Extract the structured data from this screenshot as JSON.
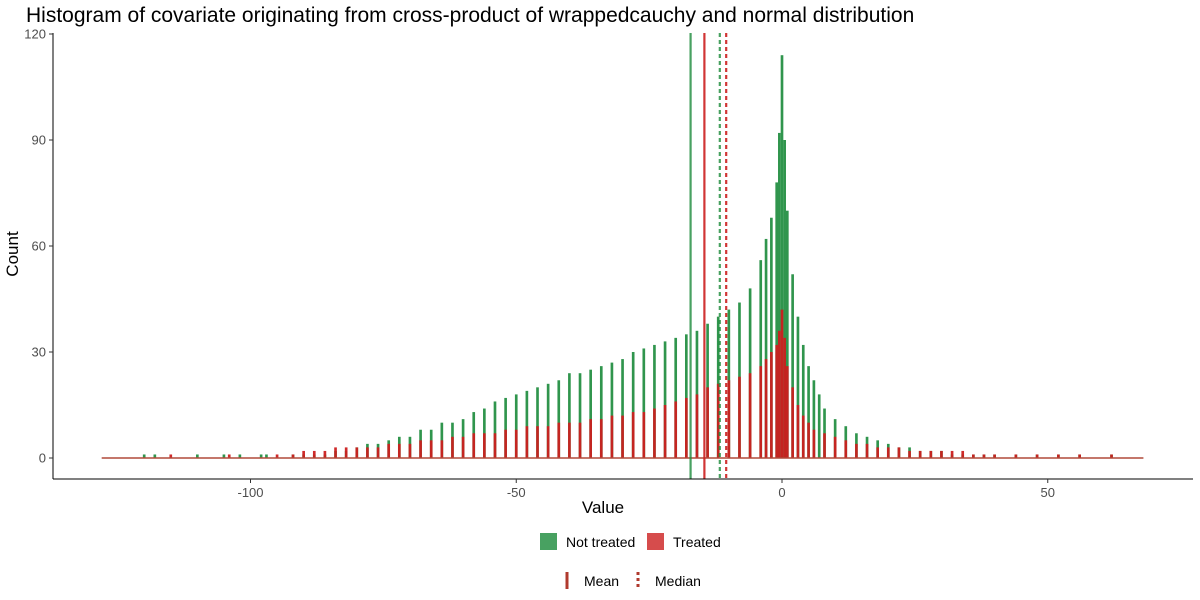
{
  "chart_data": {
    "type": "bar",
    "title": "Histogram of covariate originating from cross-product of wrappedcauchy and normal distribution",
    "xlabel": "Value",
    "ylabel": "Count",
    "xlim": [
      -128,
      68
    ],
    "ylim": [
      0,
      120
    ],
    "x_ticks": [
      -100,
      -50,
      0,
      50
    ],
    "x_tick_labels": [
      "-100",
      "-50",
      "0",
      "50"
    ],
    "y_ticks": [
      0,
      30,
      60,
      90,
      120
    ],
    "y_tick_labels": [
      "0",
      "30",
      "60",
      "90",
      "120"
    ],
    "bin_width": 0.5,
    "grid": false,
    "series": [
      {
        "name": "Not treated",
        "color": "#1a8a3a",
        "bins": [
          [
            -120,
            1
          ],
          [
            -118,
            1
          ],
          [
            -110,
            1
          ],
          [
            -105,
            1
          ],
          [
            -102,
            1
          ],
          [
            -98,
            1
          ],
          [
            -97,
            1
          ],
          [
            -92,
            1
          ],
          [
            -90,
            1
          ],
          [
            -88,
            1
          ],
          [
            -86,
            1
          ],
          [
            -84,
            2
          ],
          [
            -82,
            2
          ],
          [
            -80,
            3
          ],
          [
            -78,
            4
          ],
          [
            -76,
            4
          ],
          [
            -74,
            5
          ],
          [
            -72,
            6
          ],
          [
            -70,
            6
          ],
          [
            -68,
            8
          ],
          [
            -66,
            8
          ],
          [
            -64,
            10
          ],
          [
            -62,
            10
          ],
          [
            -60,
            11
          ],
          [
            -58,
            13
          ],
          [
            -56,
            14
          ],
          [
            -54,
            16
          ],
          [
            -52,
            17
          ],
          [
            -50,
            18
          ],
          [
            -48,
            19
          ],
          [
            -46,
            20
          ],
          [
            -44,
            21
          ],
          [
            -42,
            22
          ],
          [
            -40,
            24
          ],
          [
            -38,
            24
          ],
          [
            -36,
            25
          ],
          [
            -34,
            26
          ],
          [
            -32,
            27
          ],
          [
            -30,
            28
          ],
          [
            -28,
            30
          ],
          [
            -26,
            31
          ],
          [
            -24,
            32
          ],
          [
            -22,
            33
          ],
          [
            -20,
            34
          ],
          [
            -18,
            35
          ],
          [
            -16,
            36
          ],
          [
            -14,
            38
          ],
          [
            -12,
            40
          ],
          [
            -10,
            42
          ],
          [
            -8,
            44
          ],
          [
            -6,
            48
          ],
          [
            -4,
            56
          ],
          [
            -3,
            62
          ],
          [
            -2,
            68
          ],
          [
            -1,
            78
          ],
          [
            -0.5,
            92
          ],
          [
            0,
            114
          ],
          [
            0.5,
            90
          ],
          [
            1,
            70
          ],
          [
            2,
            52
          ],
          [
            3,
            40
          ],
          [
            4,
            32
          ],
          [
            5,
            26
          ],
          [
            6,
            22
          ],
          [
            7,
            18
          ],
          [
            8,
            14
          ],
          [
            10,
            11
          ],
          [
            12,
            9
          ],
          [
            14,
            7
          ],
          [
            16,
            6
          ],
          [
            18,
            5
          ],
          [
            20,
            4
          ],
          [
            22,
            3
          ],
          [
            24,
            3
          ],
          [
            26,
            2
          ],
          [
            28,
            2
          ],
          [
            30,
            2
          ],
          [
            32,
            1
          ],
          [
            34,
            1
          ],
          [
            36,
            1
          ],
          [
            38,
            1
          ],
          [
            40,
            1
          ],
          [
            44,
            1
          ],
          [
            48,
            1
          ],
          [
            52,
            1
          ],
          [
            56,
            1
          ],
          [
            62,
            1
          ]
        ]
      },
      {
        "name": "Treated",
        "color": "#cc1f1f",
        "bins": [
          [
            -115,
            1
          ],
          [
            -104,
            1
          ],
          [
            -95,
            1
          ],
          [
            -92,
            1
          ],
          [
            -90,
            2
          ],
          [
            -88,
            2
          ],
          [
            -86,
            2
          ],
          [
            -84,
            3
          ],
          [
            -82,
            3
          ],
          [
            -80,
            3
          ],
          [
            -78,
            3
          ],
          [
            -76,
            3
          ],
          [
            -74,
            4
          ],
          [
            -72,
            4
          ],
          [
            -70,
            4
          ],
          [
            -68,
            5
          ],
          [
            -66,
            5
          ],
          [
            -64,
            5
          ],
          [
            -62,
            6
          ],
          [
            -60,
            6
          ],
          [
            -58,
            7
          ],
          [
            -56,
            7
          ],
          [
            -54,
            7
          ],
          [
            -52,
            8
          ],
          [
            -50,
            8
          ],
          [
            -48,
            9
          ],
          [
            -46,
            9
          ],
          [
            -44,
            9
          ],
          [
            -42,
            10
          ],
          [
            -40,
            10
          ],
          [
            -38,
            10
          ],
          [
            -36,
            11
          ],
          [
            -34,
            11
          ],
          [
            -32,
            12
          ],
          [
            -30,
            12
          ],
          [
            -28,
            13
          ],
          [
            -26,
            13
          ],
          [
            -24,
            14
          ],
          [
            -22,
            15
          ],
          [
            -20,
            16
          ],
          [
            -18,
            17
          ],
          [
            -16,
            18
          ],
          [
            -14,
            20
          ],
          [
            -12,
            21
          ],
          [
            -10,
            22
          ],
          [
            -8,
            23
          ],
          [
            -6,
            24
          ],
          [
            -4,
            26
          ],
          [
            -3,
            28
          ],
          [
            -2,
            30
          ],
          [
            -1,
            32
          ],
          [
            -0.5,
            36
          ],
          [
            0,
            42
          ],
          [
            0.5,
            34
          ],
          [
            1,
            26
          ],
          [
            2,
            20
          ],
          [
            3,
            15
          ],
          [
            4,
            12
          ],
          [
            5,
            10
          ],
          [
            6,
            8
          ],
          [
            8,
            7
          ],
          [
            10,
            6
          ],
          [
            12,
            5
          ],
          [
            14,
            4
          ],
          [
            16,
            4
          ],
          [
            18,
            3
          ],
          [
            20,
            3
          ],
          [
            22,
            3
          ],
          [
            24,
            2
          ],
          [
            26,
            2
          ],
          [
            28,
            2
          ],
          [
            30,
            2
          ],
          [
            32,
            2
          ],
          [
            34,
            2
          ],
          [
            36,
            1
          ],
          [
            38,
            1
          ],
          [
            40,
            1
          ],
          [
            44,
            1
          ],
          [
            48,
            1
          ],
          [
            52,
            1
          ],
          [
            56,
            1
          ],
          [
            62,
            1
          ]
        ]
      }
    ],
    "reference_lines": [
      {
        "group": "Not treated",
        "stat": "Mean",
        "x": -17.2,
        "color": "#1a8a3a",
        "dash": "solid"
      },
      {
        "group": "Treated",
        "stat": "Mean",
        "x": -14.6,
        "color": "#cc1f1f",
        "dash": "solid"
      },
      {
        "group": "Not treated",
        "stat": "Median",
        "x": -11.7,
        "color": "#1a8a3a",
        "dash": "dotted"
      },
      {
        "group": "Treated",
        "stat": "Median",
        "x": -10.5,
        "color": "#cc1f1f",
        "dash": "dotted"
      }
    ],
    "legend_fill": {
      "placement": "bottom",
      "items": [
        {
          "label": "Not treated",
          "color": "#1a8a3a"
        },
        {
          "label": "Treated",
          "color": "#cc1f1f"
        }
      ]
    },
    "legend_linetype": {
      "placement": "bottom",
      "items": [
        {
          "label": "Mean",
          "dash": "solid",
          "color": "#b03a2e"
        },
        {
          "label": "Median",
          "dash": "dotted",
          "color": "#b03a2e"
        }
      ]
    }
  }
}
